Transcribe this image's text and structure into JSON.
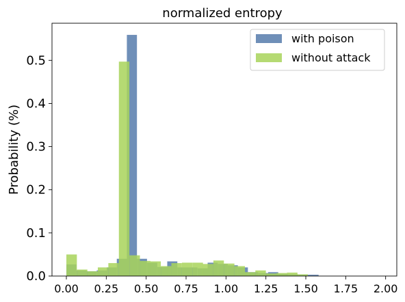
{
  "chart_data": {
    "type": "bar",
    "title": "normalized entropy",
    "xlabel": "",
    "ylabel": "Probability (%)",
    "xlim": [
      -0.09,
      2.07
    ],
    "ylim": [
      0,
      0.586
    ],
    "x_ticks": [
      0.0,
      0.25,
      0.5,
      0.75,
      1.0,
      1.25,
      1.5,
      1.75,
      2.0
    ],
    "x_tick_labels": [
      "0.00",
      "0.25",
      "0.50",
      "0.75",
      "1.00",
      "1.25",
      "1.50",
      "1.75",
      "2.00"
    ],
    "y_ticks": [
      0.0,
      0.1,
      0.2,
      0.3,
      0.4,
      0.5
    ],
    "y_tick_labels": [
      "0.0",
      "0.1",
      "0.2",
      "0.3",
      "0.4",
      "0.5"
    ],
    "grid": false,
    "legend_position": "top-right",
    "series": [
      {
        "name": "with poison",
        "color": "#6f8fb8",
        "bin_width": 0.0632,
        "bins": [
          {
            "x0": 0.0,
            "y": 0.027
          },
          {
            "x0": 0.063,
            "y": 0.013
          },
          {
            "x0": 0.126,
            "y": 0.011
          },
          {
            "x0": 0.19,
            "y": 0.013
          },
          {
            "x0": 0.253,
            "y": 0.02
          },
          {
            "x0": 0.316,
            "y": 0.04
          },
          {
            "x0": 0.379,
            "y": 0.559
          },
          {
            "x0": 0.442,
            "y": 0.04
          },
          {
            "x0": 0.506,
            "y": 0.031
          },
          {
            "x0": 0.569,
            "y": 0.021
          },
          {
            "x0": 0.632,
            "y": 0.034
          },
          {
            "x0": 0.695,
            "y": 0.02
          },
          {
            "x0": 0.758,
            "y": 0.02
          },
          {
            "x0": 0.822,
            "y": 0.018
          },
          {
            "x0": 0.885,
            "y": 0.031
          },
          {
            "x0": 0.948,
            "y": 0.028
          },
          {
            "x0": 1.011,
            "y": 0.025
          },
          {
            "x0": 1.074,
            "y": 0.02
          },
          {
            "x0": 1.138,
            "y": 0.009
          },
          {
            "x0": 1.201,
            "y": 0.007
          },
          {
            "x0": 1.264,
            "y": 0.009
          },
          {
            "x0": 1.327,
            "y": 0.005
          },
          {
            "x0": 1.39,
            "y": 0.004
          },
          {
            "x0": 1.454,
            "y": 0.003
          },
          {
            "x0": 1.517,
            "y": 0.003
          }
        ]
      },
      {
        "name": "without attack",
        "color": "#a8d45a",
        "opacity": 0.85,
        "bin_width": 0.0658,
        "bins": [
          {
            "x0": 0.0,
            "y": 0.05
          },
          {
            "x0": 0.066,
            "y": 0.015
          },
          {
            "x0": 0.132,
            "y": 0.011
          },
          {
            "x0": 0.197,
            "y": 0.02
          },
          {
            "x0": 0.263,
            "y": 0.03
          },
          {
            "x0": 0.329,
            "y": 0.497
          },
          {
            "x0": 0.395,
            "y": 0.048
          },
          {
            "x0": 0.461,
            "y": 0.035
          },
          {
            "x0": 0.526,
            "y": 0.034
          },
          {
            "x0": 0.592,
            "y": 0.023
          },
          {
            "x0": 0.658,
            "y": 0.03
          },
          {
            "x0": 0.724,
            "y": 0.031
          },
          {
            "x0": 0.79,
            "y": 0.031
          },
          {
            "x0": 0.855,
            "y": 0.028
          },
          {
            "x0": 0.921,
            "y": 0.036
          },
          {
            "x0": 0.987,
            "y": 0.029
          },
          {
            "x0": 1.053,
            "y": 0.023
          },
          {
            "x0": 1.118,
            "y": 0.009
          },
          {
            "x0": 1.184,
            "y": 0.013
          },
          {
            "x0": 1.25,
            "y": 0.006
          },
          {
            "x0": 1.316,
            "y": 0.007
          },
          {
            "x0": 1.382,
            "y": 0.008
          },
          {
            "x0": 1.447,
            "y": 0.004
          }
        ]
      }
    ]
  }
}
